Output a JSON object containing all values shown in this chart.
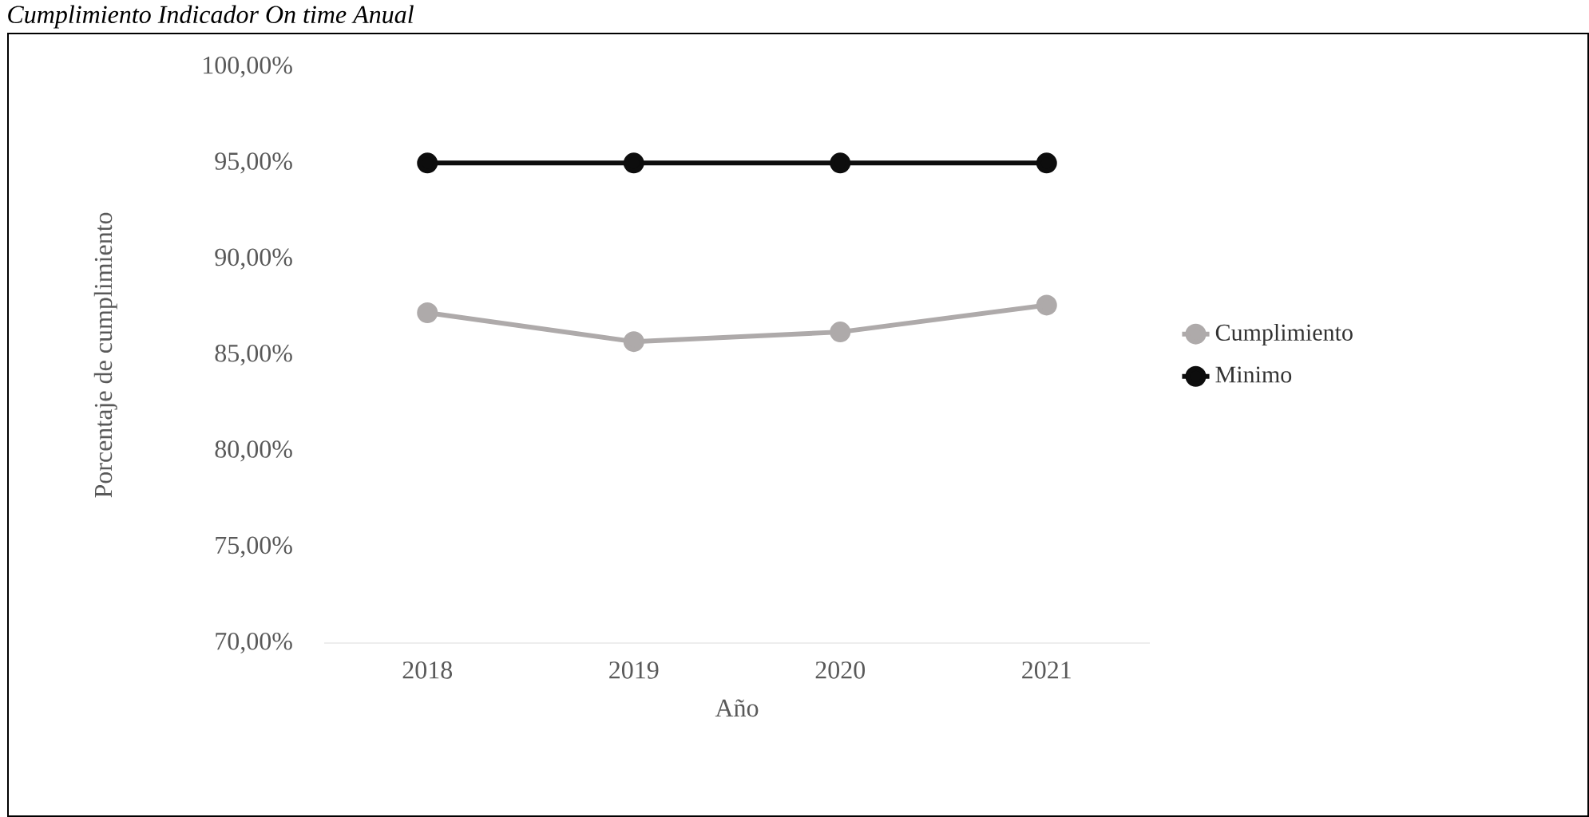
{
  "chart_data": {
    "type": "line",
    "title": "Cumplimiento Indicador On time Anual",
    "xlabel": "Año",
    "ylabel": "Porcentaje de cumplimiento",
    "categories": [
      "2018",
      "2019",
      "2020",
      "2021"
    ],
    "series": [
      {
        "name": "Cumplimiento",
        "color": "#aeaaaa",
        "values": [
          87.2,
          85.7,
          86.2,
          87.6
        ]
      },
      {
        "name": "Minimo",
        "color": "#0d0d0d",
        "values": [
          95,
          95,
          95,
          95
        ]
      }
    ],
    "ylim": [
      70,
      100
    ],
    "yticks": [
      {
        "value": 70,
        "label": "70,00%"
      },
      {
        "value": 75,
        "label": "75,00%"
      },
      {
        "value": 80,
        "label": "80,00%"
      },
      {
        "value": 85,
        "label": "85,00%"
      },
      {
        "value": 90,
        "label": "90,00%"
      },
      {
        "value": 95,
        "label": "95,00%"
      },
      {
        "value": 100,
        "label": "100,00%"
      }
    ],
    "legend": "right",
    "marker": "circle",
    "line_style": "solid"
  }
}
